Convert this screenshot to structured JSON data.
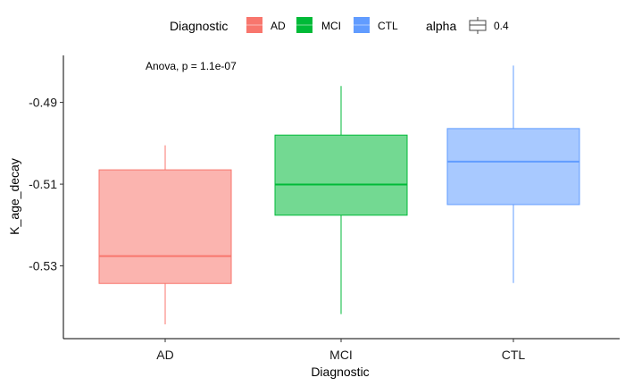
{
  "chart_data": {
    "type": "boxplot",
    "xlabel": "Diagnostic",
    "ylabel": "K_age_decay",
    "categories": [
      "AD",
      "MCI",
      "CTL"
    ],
    "ylim": [
      -0.5478,
      -0.4785
    ],
    "yticks": [
      -0.49,
      -0.51,
      -0.53
    ],
    "ytick_labels": [
      "-0.49",
      "-0.51",
      "-0.53"
    ],
    "boxes": [
      {
        "category": "AD",
        "whisker_low": -0.5443,
        "q1": -0.5343,
        "median": -0.5276,
        "q3": -0.5065,
        "whisker_high": -0.5005,
        "color": "#F8766D"
      },
      {
        "category": "MCI",
        "whisker_low": -0.5418,
        "q1": -0.5176,
        "median": -0.5101,
        "q3": -0.498,
        "whisker_high": -0.486,
        "color": "#00BA38"
      },
      {
        "category": "CTL",
        "whisker_low": -0.5342,
        "q1": -0.515,
        "median": -0.5045,
        "q3": -0.4964,
        "whisker_high": -0.481,
        "color": "#619CFF"
      }
    ],
    "annotation": "Anova, p = 1.1e-07",
    "legend": {
      "placement": "top",
      "fill_title": "Diagnostic",
      "fill_items": [
        {
          "label": "AD",
          "color": "#F8766D"
        },
        {
          "label": "MCI",
          "color": "#00BA38"
        },
        {
          "label": "CTL",
          "color": "#619CFF"
        }
      ],
      "alpha_title": "alpha",
      "alpha_items": [
        {
          "label": "0.4"
        }
      ]
    },
    "fill_alpha": 0.55,
    "grid": false
  }
}
